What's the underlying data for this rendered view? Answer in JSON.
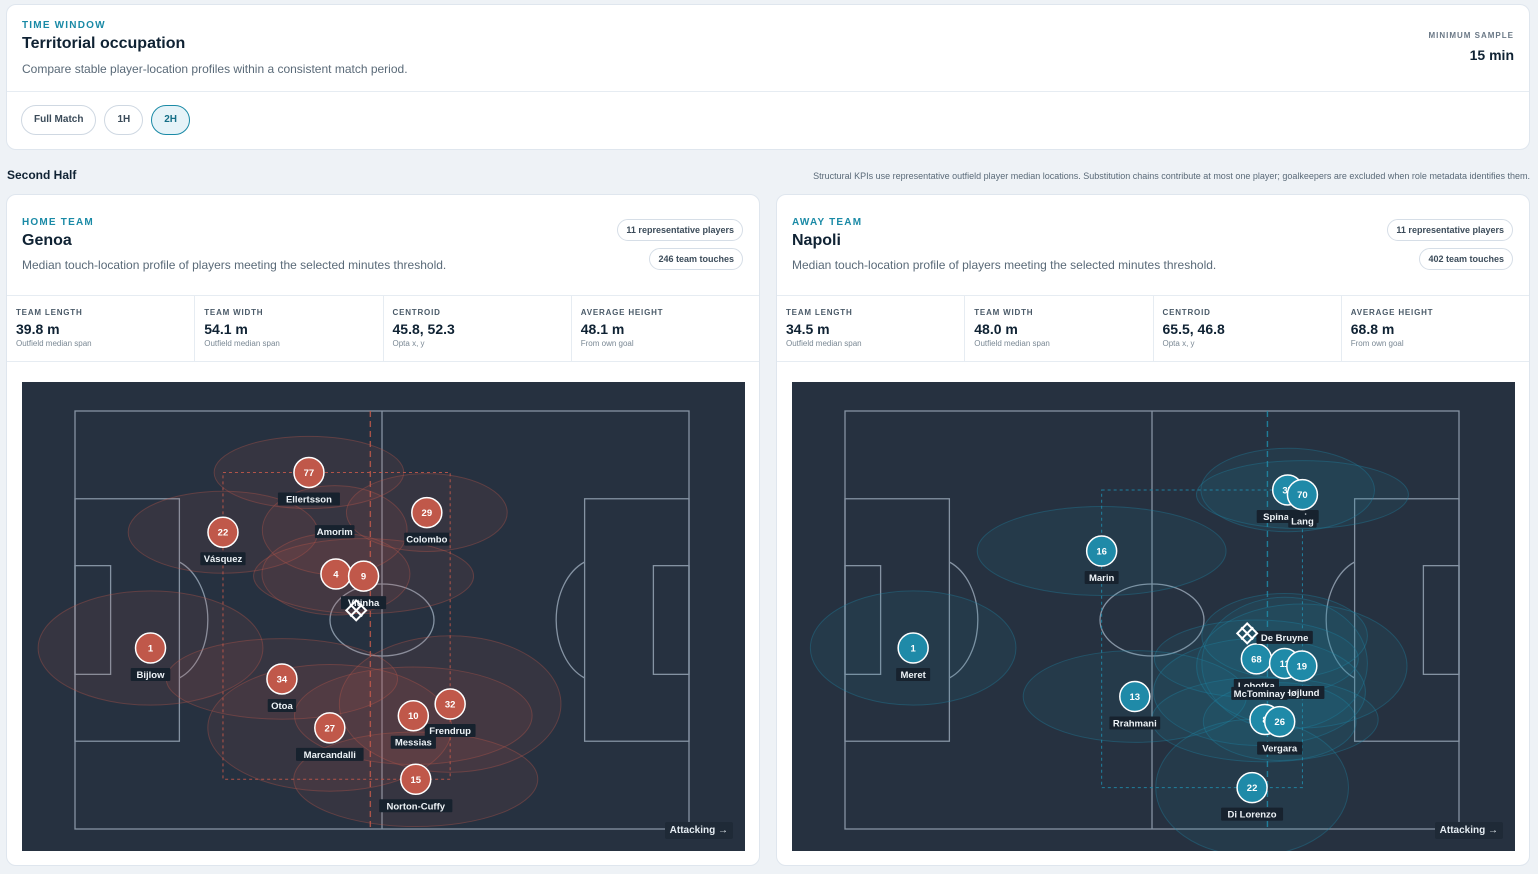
{
  "time_window": {
    "eyebrow": "TIME WINDOW",
    "title": "Territorial occupation",
    "description": "Compare stable player-location profiles within a consistent match period.",
    "min_sample_label": "MINIMUM SAMPLE",
    "min_sample_value": "15 min"
  },
  "period_tabs": [
    {
      "label": "Full Match",
      "active": false
    },
    {
      "label": "1H",
      "active": false
    },
    {
      "label": "2H",
      "active": true
    }
  ],
  "section": {
    "title": "Second Half",
    "note": "Structural KPIs use representative outfield player median locations. Substitution chains contribute at most one player; goalkeepers are excluded when role metadata identifies them."
  },
  "attacking_label": "Attacking →",
  "teams": {
    "home": {
      "eyebrow": "HOME TEAM",
      "name": "Genoa",
      "description": "Median touch-location profile of players meeting the selected minutes threshold.",
      "players_pill": "11 representative players",
      "touches_pill": "246 team touches",
      "color": "#c0584a",
      "kpis": [
        {
          "label": "TEAM LENGTH",
          "value": "39.8 m",
          "sub": "Outfield median span"
        },
        {
          "label": "TEAM WIDTH",
          "value": "54.1 m",
          "sub": "Outfield median span"
        },
        {
          "label": "CENTROID",
          "value": "45.8, 52.3",
          "sub": "Opta x, y"
        },
        {
          "label": "AVERAGE HEIGHT",
          "value": "48.1 m",
          "sub": "From own goal"
        }
      ],
      "avg_height_x": 48.1,
      "centroid": {
        "x": 45.8,
        "y": 52.3
      },
      "players": [
        {
          "num": "77",
          "name": "Ellertsson",
          "x": 38.1,
          "y": 85.3
        },
        {
          "num": "22",
          "name": "Vásquez",
          "x": 24.1,
          "y": 71.0
        },
        {
          "num": "4",
          "name": "",
          "x": 42.5,
          "y": 61.0
        },
        {
          "num": "9",
          "name": "Vitinha",
          "x": 47.0,
          "y": 60.5
        },
        {
          "num": "",
          "name": "Amorim",
          "x": 42.3,
          "y": 71.5
        },
        {
          "num": "29",
          "name": "Colombo",
          "x": 57.3,
          "y": 75.7
        },
        {
          "num": "1",
          "name": "Bijlow",
          "x": 12.3,
          "y": 43.3
        },
        {
          "num": "34",
          "name": "Otoa",
          "x": 33.7,
          "y": 35.9
        },
        {
          "num": "32",
          "name": "Frendrup",
          "x": 61.1,
          "y": 29.9
        },
        {
          "num": "10",
          "name": "Messias",
          "x": 55.1,
          "y": 27.1
        },
        {
          "num": "27",
          "name": "Marcandalli",
          "x": 41.5,
          "y": 24.2
        },
        {
          "num": "15",
          "name": "Norton-Cuffy",
          "x": 55.5,
          "y": 11.9
        }
      ]
    },
    "away": {
      "eyebrow": "AWAY TEAM",
      "name": "Napoli",
      "description": "Median touch-location profile of players meeting the selected minutes threshold.",
      "players_pill": "11 representative players",
      "touches_pill": "402 team touches",
      "color": "#1f8aa8",
      "kpis": [
        {
          "label": "TEAM LENGTH",
          "value": "34.5 m",
          "sub": "Outfield median span"
        },
        {
          "label": "TEAM WIDTH",
          "value": "48.0 m",
          "sub": "Outfield median span"
        },
        {
          "label": "CENTROID",
          "value": "65.5, 46.8",
          "sub": "Opta x, y"
        },
        {
          "label": "AVERAGE HEIGHT",
          "value": "68.8 m",
          "sub": "From own goal"
        }
      ],
      "avg_height_x": 68.8,
      "centroid": {
        "x": 65.5,
        "y": 46.8
      },
      "players": [
        {
          "num": "37",
          "name": "Spinazzola",
          "x": 72.1,
          "y": 81.1
        },
        {
          "num": "70",
          "name": "Lang",
          "x": 74.5,
          "y": 80.0
        },
        {
          "num": "16",
          "name": "Marin",
          "x": 41.8,
          "y": 66.5
        },
        {
          "num": "1",
          "name": "Meret",
          "x": 11.1,
          "y": 43.3
        },
        {
          "num": "68",
          "name": "Lobotka",
          "x": 67.0,
          "y": 40.7
        },
        {
          "num": "11",
          "name": "",
          "x": 71.6,
          "y": 39.6
        },
        {
          "num": "19",
          "name": "Højlund",
          "x": 74.4,
          "y": 39.0
        },
        {
          "num": "",
          "name": "De Bruyne",
          "x": 71.6,
          "y": 46.2
        },
        {
          "num": "",
          "name": "McTominay",
          "x": 67.5,
          "y": 32.8
        },
        {
          "num": "13",
          "name": "Rrahmani",
          "x": 47.2,
          "y": 31.7
        },
        {
          "num": "8",
          "name": "",
          "x": 68.4,
          "y": 26.2
        },
        {
          "num": "26",
          "name": "Vergara",
          "x": 70.8,
          "y": 25.7
        },
        {
          "num": "22",
          "name": "Di Lorenzo",
          "x": 66.3,
          "y": 9.9
        }
      ]
    }
  }
}
